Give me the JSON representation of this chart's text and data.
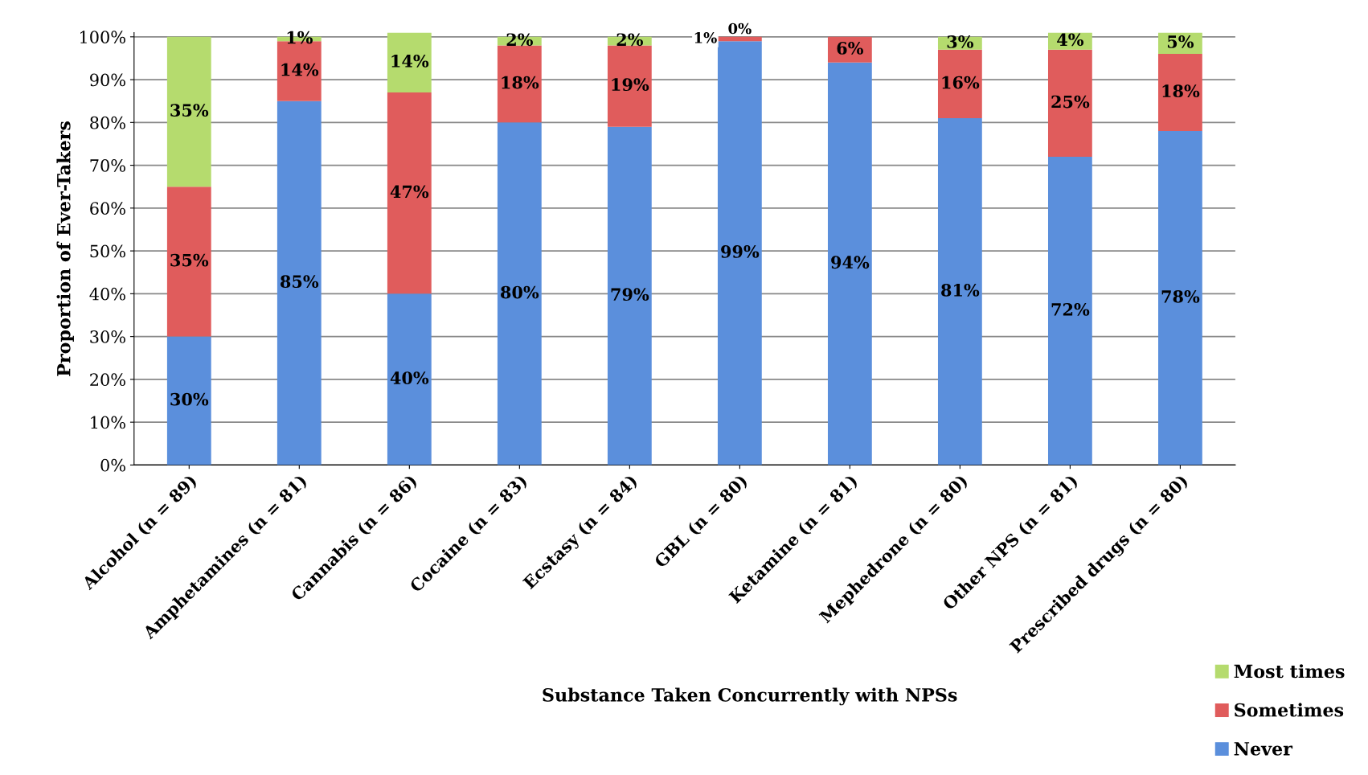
{
  "chart_data": {
    "type": "bar",
    "stacked": true,
    "xlabel": "Substance Taken Concurrently with NPSs",
    "ylabel": "Proportion of Ever-Takers",
    "categories": [
      "Alcohol (n = 89)",
      "Amphetamines (n = 81)",
      "Cannabis (n = 86)",
      "Cocaine (n = 83)",
      "Ecstasy (n = 84)",
      "GBL (n = 80)",
      "Ketamine (n = 81)",
      "Mephedrone (n = 80)",
      "Other NPS (n = 81)",
      "Prescribed drugs (n = 80)"
    ],
    "series": [
      {
        "name": "Never",
        "color": "#5b8fdc",
        "values": [
          30,
          85,
          40,
          80,
          79,
          99,
          94,
          81,
          72,
          78
        ],
        "value_labels": [
          "30%",
          "85%",
          "40%",
          "80%",
          "79%",
          "99%",
          "94%",
          "81%",
          "72%",
          "78%"
        ]
      },
      {
        "name": "Sometimes",
        "color": "#e05c5c",
        "values": [
          35,
          14,
          47,
          18,
          19,
          1,
          6,
          16,
          25,
          18
        ],
        "value_labels": [
          "35%",
          "14%",
          "47%",
          "18%",
          "19%",
          "1%",
          "6%",
          "16%",
          "25%",
          "18%"
        ]
      },
      {
        "name": "Most times",
        "color": "#b5db6e",
        "values": [
          35,
          1,
          14,
          2,
          2,
          0,
          0,
          3,
          4,
          5
        ],
        "value_labels": [
          "35%",
          "1%",
          "14%",
          "2%",
          "2%",
          "0%",
          null,
          "3%",
          "4%",
          "5%"
        ]
      }
    ],
    "ylim": [
      0,
      101
    ],
    "yticks": [
      {
        "value": 0,
        "label": "0%"
      },
      {
        "value": 10,
        "label": "10%"
      },
      {
        "value": 20,
        "label": "20%"
      },
      {
        "value": 30,
        "label": "30%"
      },
      {
        "value": 40,
        "label": "40%"
      },
      {
        "value": 50,
        "label": "50%"
      },
      {
        "value": 60,
        "label": "60%"
      },
      {
        "value": 70,
        "label": "70%"
      },
      {
        "value": 80,
        "label": "80%"
      },
      {
        "value": 90,
        "label": "90%"
      },
      {
        "value": 100,
        "label": "100%"
      }
    ],
    "grid": "y",
    "legend": "bottom right"
  }
}
